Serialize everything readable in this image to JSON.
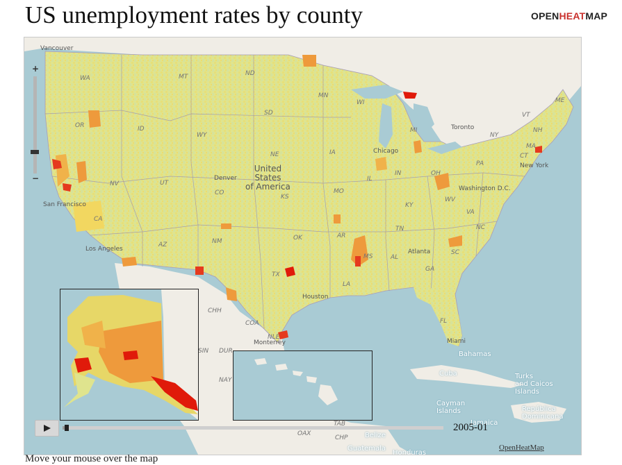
{
  "header": {
    "title": "US unemployment rates by county",
    "logo_prefix": "OPEN",
    "logo_accent": "HEAT",
    "logo_suffix": "MAP"
  },
  "colors": {
    "water": "#a9cbd4",
    "land_other": "#f0ede6",
    "low": "#dbe38a",
    "mid": "#eeda6a",
    "high": "#ee9a3c",
    "very_high": "#e53a1e",
    "extreme": "#e01a0a",
    "border": "#9a8fb0",
    "logo_accent": "#c9302c"
  },
  "map": {
    "state_labels": [
      "WA",
      "MT",
      "ND",
      "MN",
      "OR",
      "ID",
      "SD",
      "WY",
      "NE",
      "IA",
      "WI",
      "MI",
      "NV",
      "UT",
      "CO",
      "KS",
      "MO",
      "IL",
      "IN",
      "OH",
      "PA",
      "NY",
      "VT",
      "NH",
      "ME",
      "MA",
      "CT",
      "CA",
      "AZ",
      "NM",
      "OK",
      "AR",
      "TN",
      "KY",
      "WV",
      "VA",
      "NC",
      "SC",
      "GA",
      "AL",
      "MS",
      "LA",
      "TX",
      "FL",
      "CHH",
      "COA",
      "NLE",
      "SIN",
      "DUR",
      "NAY",
      "TAB",
      "OAX",
      "CHP"
    ],
    "city_labels": [
      "Vancouver",
      "Toronto",
      "Chicago",
      "New York",
      "Denver",
      "San Francisco",
      "Los Angeles",
      "Washington D.C.",
      "Atlanta",
      "Houston",
      "Monterrey",
      "Miami"
    ],
    "country_label": "United States of America",
    "sea_labels": [
      "Bahamas",
      "Cuba",
      "Turks and Caicos Islands",
      "Cayman Islands",
      "República Dominicana",
      "Jamaica",
      "Belize",
      "Guatemala",
      "Honduras"
    ]
  },
  "player": {
    "current_date": "2005-01",
    "progress": 0.005
  },
  "attribution": "OpenHeatMap",
  "below_text": "Move your mouse over the map"
}
